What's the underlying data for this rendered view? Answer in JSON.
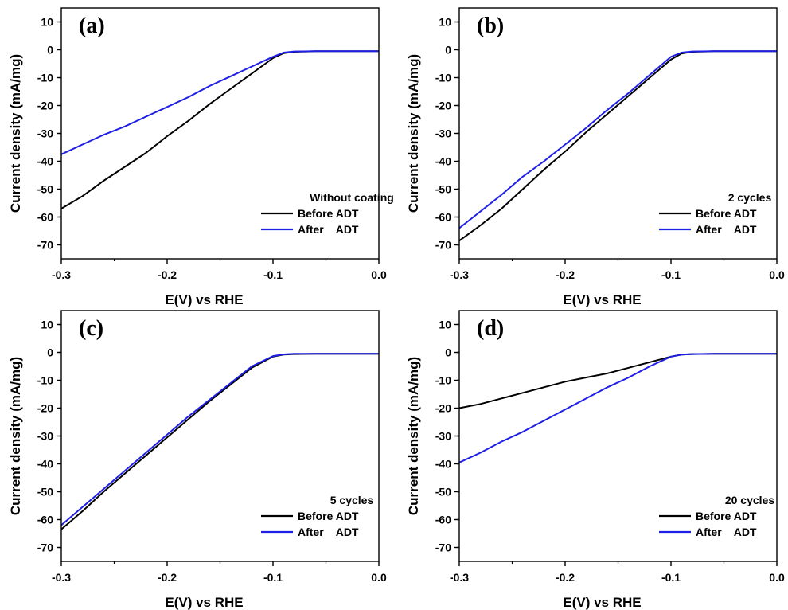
{
  "chart_data": [
    {
      "type": "line",
      "panel_label": "(a)",
      "xlabel": "E(V) vs RHE",
      "ylabel": "Current density (mA/mg)",
      "xlim": [
        -0.3,
        0.0
      ],
      "ylim": [
        -75,
        15
      ],
      "xticks": [
        -0.3,
        -0.2,
        -0.1,
        0.0
      ],
      "xtick_labels": [
        "-0.3",
        "-0.2",
        "-0.1",
        "0.0"
      ],
      "yticks": [
        10,
        0,
        -10,
        -20,
        -30,
        -40,
        -50,
        -60,
        -70
      ],
      "ytick_labels": [
        "10",
        "0",
        "-10",
        "-20",
        "-30",
        "-40",
        "-50",
        "-60",
        "-70"
      ],
      "legend_title": "Without coating",
      "legend_position": "bottom-right",
      "series": [
        {
          "name": "Before ADT",
          "color": "#000000",
          "x": [
            -0.3,
            -0.28,
            -0.26,
            -0.24,
            -0.22,
            -0.2,
            -0.18,
            -0.16,
            -0.14,
            -0.12,
            -0.1,
            -0.09,
            -0.08,
            -0.06,
            0.0
          ],
          "y": [
            -57,
            -52.5,
            -47,
            -42,
            -37,
            -31,
            -25.5,
            -19.5,
            -14,
            -8.5,
            -3,
            -1.2,
            -0.7,
            -0.5,
            -0.5
          ]
        },
        {
          "name": "After    ADT",
          "color": "#1f1fe6",
          "x": [
            -0.3,
            -0.28,
            -0.26,
            -0.24,
            -0.22,
            -0.2,
            -0.18,
            -0.16,
            -0.14,
            -0.12,
            -0.1,
            -0.09,
            -0.08,
            -0.06,
            0.0
          ],
          "y": [
            -37.5,
            -34,
            -30.5,
            -27.5,
            -24,
            -20.5,
            -17,
            -13,
            -9.5,
            -6,
            -2.5,
            -1,
            -0.6,
            -0.5,
            -0.5
          ]
        }
      ]
    },
    {
      "type": "line",
      "panel_label": "(b)",
      "xlabel": "E(V) vs RHE",
      "ylabel": "Current density (mA/mg)",
      "xlim": [
        -0.3,
        0.0
      ],
      "ylim": [
        -75,
        15
      ],
      "xticks": [
        -0.3,
        -0.2,
        -0.1,
        0.0
      ],
      "xtick_labels": [
        "-0.3",
        "-0.2",
        "-0.1",
        "0.0"
      ],
      "yticks": [
        10,
        0,
        -10,
        -20,
        -30,
        -40,
        -50,
        -60,
        -70
      ],
      "ytick_labels": [
        "10",
        "0",
        "-10",
        "-20",
        "-30",
        "-40",
        "-50",
        "-60",
        "-70"
      ],
      "legend_title": "2 cycles",
      "legend_position": "bottom-right",
      "series": [
        {
          "name": "Before ADT",
          "color": "#000000",
          "x": [
            -0.3,
            -0.28,
            -0.26,
            -0.24,
            -0.22,
            -0.2,
            -0.18,
            -0.16,
            -0.14,
            -0.12,
            -0.1,
            -0.09,
            -0.08,
            -0.06,
            0.0
          ],
          "y": [
            -68.5,
            -63,
            -57,
            -50,
            -43,
            -36.5,
            -29.5,
            -23,
            -16.5,
            -10,
            -3.5,
            -1.3,
            -0.7,
            -0.5,
            -0.5
          ]
        },
        {
          "name": "After    ADT",
          "color": "#1f1fe6",
          "x": [
            -0.3,
            -0.28,
            -0.26,
            -0.24,
            -0.22,
            -0.2,
            -0.18,
            -0.16,
            -0.14,
            -0.12,
            -0.1,
            -0.09,
            -0.08,
            -0.06,
            0.0
          ],
          "y": [
            -64,
            -58,
            -52,
            -45.5,
            -40,
            -34,
            -28,
            -21.5,
            -15.5,
            -9,
            -2.5,
            -1,
            -0.6,
            -0.5,
            -0.5
          ]
        }
      ]
    },
    {
      "type": "line",
      "panel_label": "(c)",
      "xlabel": "E(V) vs RHE",
      "ylabel": "Current density (mA/mg)",
      "xlim": [
        -0.3,
        0.0
      ],
      "ylim": [
        -75,
        15
      ],
      "xticks": [
        -0.3,
        -0.2,
        -0.1,
        0.0
      ],
      "xtick_labels": [
        "-0.3",
        "-0.2",
        "-0.1",
        "0.0"
      ],
      "yticks": [
        10,
        0,
        -10,
        -20,
        -30,
        -40,
        -50,
        -60,
        -70
      ],
      "ytick_labels": [
        "10",
        "0",
        "-10",
        "-20",
        "-30",
        "-40",
        "-50",
        "-60",
        "-70"
      ],
      "legend_title": "5 cycles",
      "legend_position": "bottom-right",
      "series": [
        {
          "name": "Before ADT",
          "color": "#000000",
          "x": [
            -0.3,
            -0.28,
            -0.26,
            -0.24,
            -0.22,
            -0.2,
            -0.18,
            -0.16,
            -0.14,
            -0.12,
            -0.1,
            -0.09,
            -0.08,
            -0.06,
            0.0
          ],
          "y": [
            -63.5,
            -57,
            -50,
            -43.5,
            -37,
            -30.5,
            -24,
            -17.5,
            -11.5,
            -5.5,
            -1.5,
            -0.8,
            -0.6,
            -0.5,
            -0.5
          ]
        },
        {
          "name": "After    ADT",
          "color": "#1f1fe6",
          "x": [
            -0.3,
            -0.28,
            -0.26,
            -0.24,
            -0.22,
            -0.2,
            -0.18,
            -0.16,
            -0.14,
            -0.12,
            -0.1,
            -0.09,
            -0.08,
            -0.06,
            0.0
          ],
          "y": [
            -62,
            -55.5,
            -49,
            -42.5,
            -36,
            -29.5,
            -23,
            -17,
            -11,
            -5,
            -1.3,
            -0.7,
            -0.5,
            -0.5,
            -0.5
          ]
        }
      ]
    },
    {
      "type": "line",
      "panel_label": "(d)",
      "xlabel": "E(V) vs RHE",
      "ylabel": "Current density (mA/mg)",
      "xlim": [
        -0.3,
        0.0
      ],
      "ylim": [
        -75,
        15
      ],
      "xticks": [
        -0.3,
        -0.2,
        -0.1,
        0.0
      ],
      "xtick_labels": [
        "-0.3",
        "-0.2",
        "-0.1",
        "0.0"
      ],
      "yticks": [
        10,
        0,
        -10,
        -20,
        -30,
        -40,
        -50,
        -60,
        -70
      ],
      "ytick_labels": [
        "10",
        "0",
        "-10",
        "-20",
        "-30",
        "-40",
        "-50",
        "-60",
        "-70"
      ],
      "legend_title": "20 cycles",
      "legend_position": "bottom-right",
      "series": [
        {
          "name": "Before ADT",
          "color": "#000000",
          "x": [
            -0.3,
            -0.28,
            -0.26,
            -0.24,
            -0.22,
            -0.2,
            -0.18,
            -0.16,
            -0.14,
            -0.12,
            -0.1,
            -0.09,
            -0.08,
            -0.06,
            0.0
          ],
          "y": [
            -20,
            -18.5,
            -16.5,
            -14.5,
            -12.5,
            -10.5,
            -9,
            -7.5,
            -5.5,
            -3.5,
            -1.5,
            -0.8,
            -0.6,
            -0.5,
            -0.5
          ]
        },
        {
          "name": "After    ADT",
          "color": "#1f1fe6",
          "x": [
            -0.3,
            -0.28,
            -0.26,
            -0.24,
            -0.22,
            -0.2,
            -0.18,
            -0.16,
            -0.14,
            -0.12,
            -0.1,
            -0.09,
            -0.08,
            -0.06,
            0.0
          ],
          "y": [
            -39.5,
            -36,
            -32,
            -28.5,
            -24.5,
            -20.5,
            -16.5,
            -12.5,
            -9,
            -5,
            -1.5,
            -0.8,
            -0.6,
            -0.5,
            -0.5
          ]
        }
      ]
    }
  ]
}
